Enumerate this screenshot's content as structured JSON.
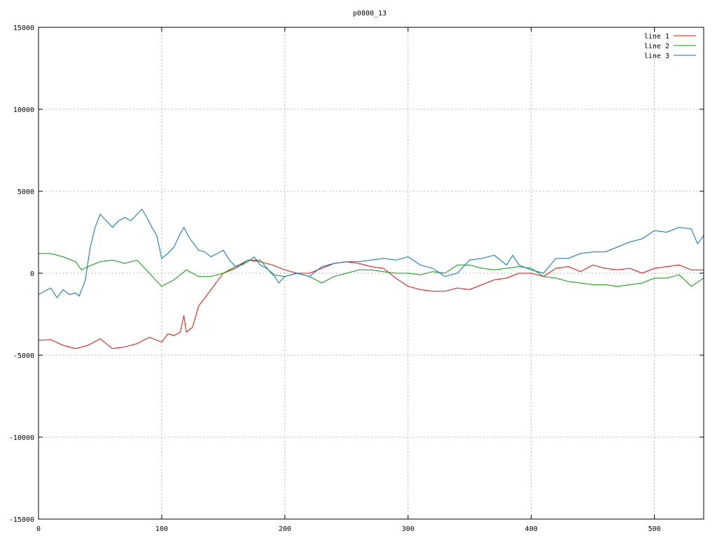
{
  "chart_data": {
    "type": "line",
    "title": "p0800_13",
    "xlabel": "",
    "ylabel": "",
    "xlim": [
      0,
      540
    ],
    "ylim": [
      -15000,
      15000
    ],
    "xticks": [
      0,
      100,
      200,
      300,
      400,
      500
    ],
    "yticks": [
      -15000,
      -10000,
      -5000,
      0,
      5000,
      10000,
      15000
    ],
    "grid": true,
    "legend_position": "top-right",
    "series": [
      {
        "name": "line 1",
        "color": "#ff0000",
        "x": [
          0,
          10,
          20,
          30,
          40,
          50,
          60,
          70,
          80,
          90,
          100,
          105,
          110,
          115,
          118,
          120,
          125,
          130,
          140,
          150,
          160,
          170,
          180,
          190,
          200,
          210,
          220,
          230,
          240,
          250,
          260,
          270,
          280,
          290,
          300,
          310,
          320,
          330,
          340,
          350,
          360,
          370,
          380,
          390,
          400,
          410,
          420,
          430,
          440,
          450,
          460,
          470,
          480,
          490,
          500,
          510,
          520,
          530,
          540
        ],
        "y": [
          -4100,
          -4050,
          -4400,
          -4600,
          -4400,
          -4000,
          -4600,
          -4500,
          -4300,
          -3900,
          -4200,
          -3700,
          -3800,
          -3600,
          -2600,
          -3600,
          -3300,
          -2000,
          -1000,
          0,
          300,
          800,
          700,
          500,
          200,
          0,
          0,
          300,
          600,
          700,
          600,
          400,
          300,
          -300,
          -800,
          -1000,
          -1100,
          -1100,
          -900,
          -1000,
          -700,
          -400,
          -300,
          0,
          0,
          -200,
          300,
          400,
          100,
          500,
          300,
          200,
          300,
          0,
          300,
          400,
          500,
          200,
          200
        ]
      },
      {
        "name": "line 2",
        "color": "#00a000",
        "x": [
          0,
          10,
          20,
          30,
          35,
          40,
          50,
          60,
          70,
          80,
          90,
          100,
          110,
          120,
          130,
          140,
          150,
          160,
          170,
          180,
          190,
          200,
          210,
          220,
          230,
          240,
          250,
          260,
          270,
          280,
          290,
          300,
          310,
          320,
          330,
          340,
          350,
          360,
          370,
          380,
          390,
          400,
          410,
          420,
          430,
          440,
          450,
          460,
          470,
          480,
          490,
          500,
          510,
          520,
          530,
          540
        ],
        "y": [
          1200,
          1200,
          1000,
          700,
          200,
          400,
          700,
          800,
          600,
          800,
          0,
          -800,
          -400,
          200,
          -200,
          -200,
          0,
          400,
          800,
          800,
          -100,
          -200,
          0,
          -200,
          -600,
          -200,
          0,
          200,
          200,
          100,
          0,
          0,
          -100,
          100,
          0,
          500,
          500,
          300,
          200,
          300,
          400,
          300,
          -200,
          -300,
          -500,
          -600,
          -700,
          -700,
          -800,
          -700,
          -600,
          -300,
          -300,
          -100,
          -800,
          -300
        ]
      },
      {
        "name": "line 3",
        "color": "#0070d0",
        "x": [
          0,
          10,
          15,
          20,
          25,
          30,
          33,
          38,
          42,
          46,
          50,
          55,
          60,
          65,
          70,
          75,
          80,
          84,
          88,
          92,
          96,
          100,
          105,
          110,
          115,
          118,
          122,
          126,
          130,
          135,
          140,
          145,
          150,
          155,
          160,
          165,
          170,
          175,
          180,
          185,
          190,
          195,
          200,
          210,
          220,
          230,
          240,
          250,
          260,
          270,
          280,
          290,
          300,
          310,
          320,
          330,
          340,
          350,
          360,
          370,
          380,
          385,
          390,
          400,
          410,
          420,
          430,
          440,
          450,
          460,
          470,
          480,
          490,
          500,
          510,
          520,
          530,
          535,
          540
        ],
        "y": [
          -1300,
          -900,
          -1500,
          -1000,
          -1300,
          -1200,
          -1400,
          -400,
          1600,
          2800,
          3600,
          3200,
          2800,
          3200,
          3400,
          3200,
          3600,
          3900,
          3400,
          2800,
          2300,
          900,
          1200,
          1600,
          2400,
          2800,
          2200,
          1800,
          1400,
          1300,
          1000,
          1200,
          1400,
          800,
          400,
          500,
          700,
          1000,
          500,
          300,
          0,
          -600,
          -200,
          0,
          -200,
          400,
          600,
          700,
          700,
          800,
          900,
          800,
          1000,
          500,
          300,
          -200,
          0,
          800,
          900,
          1100,
          500,
          1100,
          500,
          200,
          0,
          900,
          900,
          1200,
          1300,
          1300,
          1600,
          1900,
          2100,
          2600,
          2500,
          2800,
          2700,
          1800,
          2300
        ]
      }
    ]
  }
}
